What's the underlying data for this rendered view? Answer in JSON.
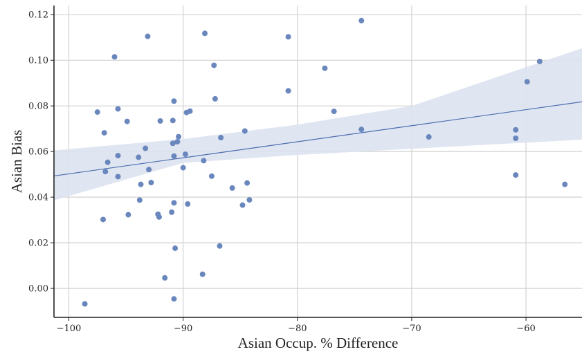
{
  "chart_data": {
    "type": "scatter",
    "xlabel": "Asian Occup. % Difference",
    "ylabel": "Asian Bias",
    "xlim": [
      -101.3,
      -55.1
    ],
    "ylim": [
      -0.0127,
      0.124
    ],
    "x_ticks": [
      -100,
      -90,
      -80,
      -70,
      -60
    ],
    "x_tick_labels": [
      "−100",
      "−90",
      "−80",
      "−70",
      "−60"
    ],
    "y_ticks": [
      0.0,
      0.02,
      0.04,
      0.06,
      0.08,
      0.1,
      0.12
    ],
    "y_tick_labels": [
      "0.00",
      "0.02",
      "0.04",
      "0.06",
      "0.08",
      "0.10",
      "0.12"
    ],
    "grid": true,
    "colors": {
      "points": "#6a87bd",
      "line": "#4a6cb0",
      "band": "#dde3f0",
      "grid": "#d2d2d2",
      "axis": "#222222"
    },
    "regression": {
      "line": [
        [
          -101.3,
          0.0493
        ],
        [
          -55.1,
          0.0818
        ]
      ],
      "ci_upper": [
        [
          -101.3,
          0.0605
        ],
        [
          -90,
          0.0655
        ],
        [
          -80,
          0.0718
        ],
        [
          -70,
          0.08
        ],
        [
          -55.1,
          0.1053
        ]
      ],
      "ci_lower": [
        [
          -101.3,
          0.0386
        ],
        [
          -90,
          0.055
        ],
        [
          -80,
          0.0585
        ],
        [
          -70,
          0.0612
        ],
        [
          -55.1,
          0.0652
        ]
      ]
    },
    "points": [
      [
        -98.6,
        -0.0068
      ],
      [
        -97.5,
        0.0773
      ],
      [
        -97.0,
        0.0302
      ],
      [
        -96.9,
        0.0682
      ],
      [
        -96.8,
        0.0512
      ],
      [
        -96.6,
        0.0553
      ],
      [
        -96.0,
        0.1015
      ],
      [
        -95.7,
        0.0787
      ],
      [
        -95.7,
        0.049
      ],
      [
        -95.7,
        0.0582
      ],
      [
        -94.9,
        0.0732
      ],
      [
        -94.8,
        0.0323
      ],
      [
        -93.9,
        0.0575
      ],
      [
        -93.8,
        0.0387
      ],
      [
        -93.7,
        0.0456
      ],
      [
        -93.3,
        0.0614
      ],
      [
        -93.1,
        0.1105
      ],
      [
        -93.0,
        0.0521
      ],
      [
        -92.8,
        0.0464
      ],
      [
        -92.2,
        0.0325
      ],
      [
        -92.1,
        0.0313
      ],
      [
        -92.0,
        0.0734
      ],
      [
        -91.6,
        0.0046
      ],
      [
        -91.0,
        0.0334
      ],
      [
        -90.9,
        0.0636
      ],
      [
        -90.9,
        0.0736
      ],
      [
        -90.8,
        -0.0046
      ],
      [
        -90.8,
        0.0821
      ],
      [
        -90.8,
        0.058
      ],
      [
        -90.8,
        0.0375
      ],
      [
        -90.7,
        0.0176
      ],
      [
        -90.5,
        0.0643
      ],
      [
        -90.4,
        0.0665
      ],
      [
        -90.0,
        0.0529
      ],
      [
        -89.8,
        0.0588
      ],
      [
        -89.7,
        0.0771
      ],
      [
        -89.6,
        0.037
      ],
      [
        -89.4,
        0.0777
      ],
      [
        -88.3,
        0.0062
      ],
      [
        -88.2,
        0.056
      ],
      [
        -88.1,
        0.1118
      ],
      [
        -87.5,
        0.0492
      ],
      [
        -87.3,
        0.0978
      ],
      [
        -87.2,
        0.0831
      ],
      [
        -86.8,
        0.0186
      ],
      [
        -86.7,
        0.0661
      ],
      [
        -85.7,
        0.044
      ],
      [
        -84.8,
        0.0365
      ],
      [
        -84.6,
        0.069
      ],
      [
        -84.4,
        0.0462
      ],
      [
        -84.2,
        0.0388
      ],
      [
        -80.8,
        0.1103
      ],
      [
        -80.8,
        0.0866
      ],
      [
        -77.6,
        0.0965
      ],
      [
        -76.8,
        0.0776
      ],
      [
        -74.4,
        0.1174
      ],
      [
        -74.4,
        0.0697
      ],
      [
        -68.5,
        0.0664
      ],
      [
        -60.9,
        0.0695
      ],
      [
        -60.9,
        0.0658
      ],
      [
        -60.9,
        0.0497
      ],
      [
        -59.9,
        0.0906
      ],
      [
        -58.8,
        0.0995
      ],
      [
        -56.6,
        0.0456
      ]
    ]
  }
}
